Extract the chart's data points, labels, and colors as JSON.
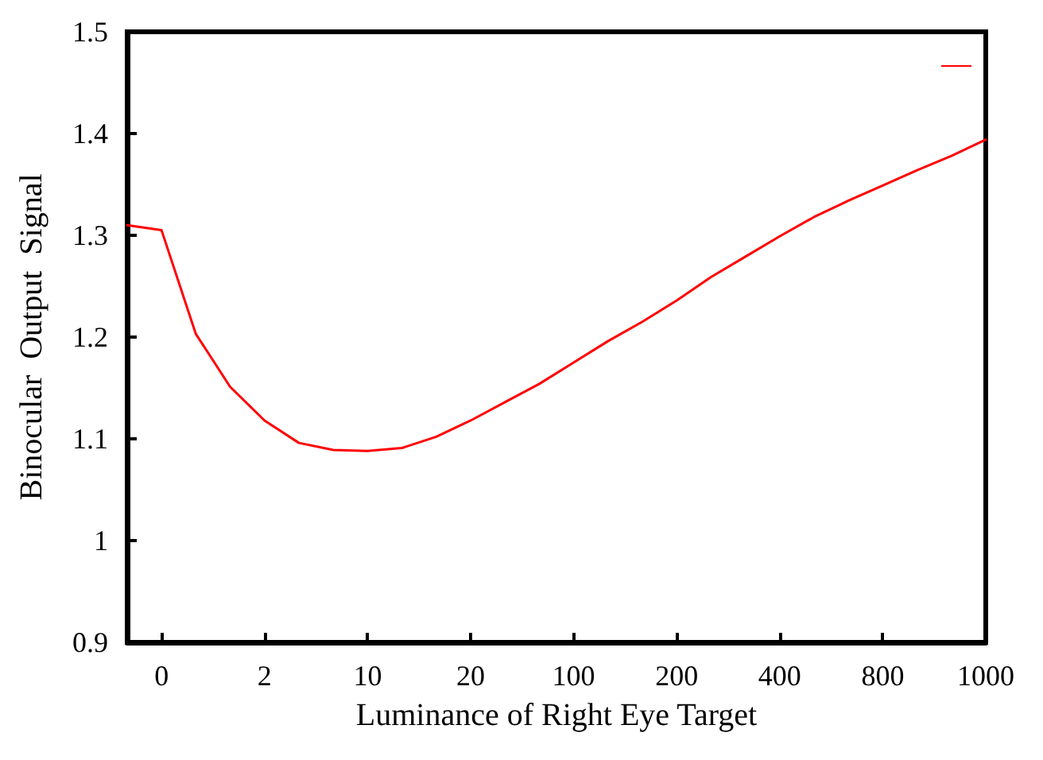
{
  "chart_data": {
    "type": "line",
    "xlabel": "Luminance of Right Eye Target",
    "ylabel": "Binocular  Output  Signal",
    "categories": [
      null,
      "0",
      null,
      null,
      "2",
      null,
      null,
      "10",
      null,
      null,
      "20",
      null,
      null,
      "100",
      null,
      null,
      "200",
      null,
      null,
      "400",
      null,
      null,
      "800",
      null,
      null,
      "1000"
    ],
    "series": [
      {
        "color": "#ff0000",
        "values": [
          1.31,
          1.305,
          1.203,
          1.151,
          1.118,
          1.096,
          1.089,
          1.088,
          1.091,
          1.102,
          1.118,
          1.136,
          1.154,
          1.175,
          1.196,
          1.215,
          1.236,
          1.259,
          1.279,
          1.299,
          1.318,
          1.334,
          1.349,
          1.364,
          1.378,
          1.394
        ]
      }
    ],
    "ylim": [
      0.9,
      1.5
    ],
    "yticks": [
      0.9,
      1,
      1.1,
      1.2,
      1.3,
      1.4,
      1.5
    ],
    "grid": false,
    "marker": "none",
    "line_style": "solid"
  }
}
